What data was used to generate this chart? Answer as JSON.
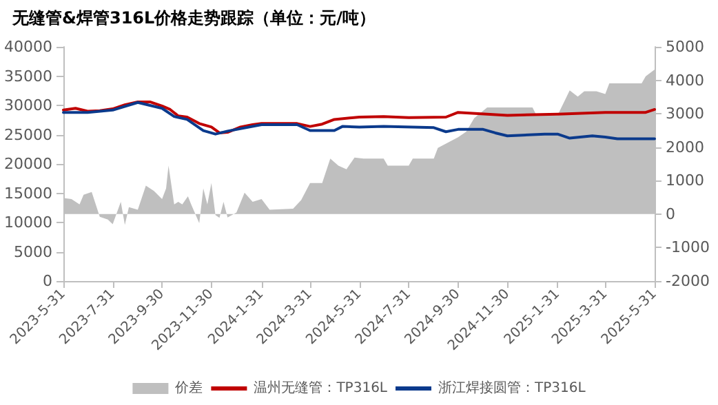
{
  "chart_data": {
    "type": "line",
    "title": "无缝管&焊管316L价格走势跟踪（单位：元/吨）",
    "xlim": [
      "2023-05-31",
      "2025-05-31"
    ],
    "xticks": [
      {
        "value": "2023-05-31",
        "label": "2023-5-31"
      },
      {
        "value": "2023-07-31",
        "label": "2023-7-31"
      },
      {
        "value": "2023-09-30",
        "label": "2023-9-30"
      },
      {
        "value": "2023-11-30",
        "label": "2023-11-30"
      },
      {
        "value": "2024-01-31",
        "label": "2024-1-31"
      },
      {
        "value": "2024-03-31",
        "label": "2024-3-31"
      },
      {
        "value": "2024-05-31",
        "label": "2024-5-31"
      },
      {
        "value": "2024-07-31",
        "label": "2024-7-31"
      },
      {
        "value": "2024-09-30",
        "label": "2024-9-30"
      },
      {
        "value": "2024-11-30",
        "label": "2024-11-30"
      },
      {
        "value": "2025-01-31",
        "label": "2025-1-31"
      },
      {
        "value": "2025-03-31",
        "label": "2025-3-31"
      },
      {
        "value": "2025-05-31",
        "label": "2025-5-31"
      }
    ],
    "ylim": [
      0,
      40000
    ],
    "yticks": [
      0,
      5000,
      10000,
      15000,
      20000,
      25000,
      30000,
      35000,
      40000
    ],
    "y2lim": [
      -2000,
      5000
    ],
    "y2ticks": [
      -2000,
      -1000,
      0,
      1000,
      2000,
      3000,
      4000,
      5000
    ],
    "grid": false,
    "legend": "bottom",
    "marker": "none",
    "line_style": "solid",
    "series": [
      {
        "name": "价差",
        "type": "area",
        "axis": "y2",
        "color": "#bfbfbf",
        "x": [
          "2023-05-31",
          "2023-06-10",
          "2023-06-20",
          "2023-06-25",
          "2023-07-05",
          "2023-07-15",
          "2023-07-25",
          "2023-07-31",
          "2023-08-10",
          "2023-08-15",
          "2023-08-20",
          "2023-08-31",
          "2023-09-10",
          "2023-09-20",
          "2023-09-30",
          "2023-10-05",
          "2023-10-08",
          "2023-10-15",
          "2023-10-20",
          "2023-10-25",
          "2023-11-01",
          "2023-11-05",
          "2023-11-15",
          "2023-11-20",
          "2023-11-25",
          "2023-11-30",
          "2023-12-05",
          "2023-12-10",
          "2023-12-15",
          "2023-12-20",
          "2023-12-31",
          "2024-01-10",
          "2024-01-20",
          "2024-01-31",
          "2024-02-10",
          "2024-03-10",
          "2024-03-20",
          "2024-03-31",
          "2024-04-15",
          "2024-04-25",
          "2024-05-05",
          "2024-05-15",
          "2024-05-25",
          "2024-06-05",
          "2024-06-30",
          "2024-07-05",
          "2024-07-31",
          "2024-08-05",
          "2024-08-31",
          "2024-09-05",
          "2024-09-30",
          "2024-10-10",
          "2024-10-20",
          "2024-11-05",
          "2024-11-30",
          "2024-12-31",
          "2025-01-05",
          "2025-01-31",
          "2025-02-15",
          "2025-02-25",
          "2025-03-05",
          "2025-03-20",
          "2025-03-31",
          "2025-04-05",
          "2025-05-15",
          "2025-05-20",
          "2025-05-31"
        ],
        "values": [
          480,
          450,
          290,
          580,
          660,
          -80,
          -160,
          -300,
          370,
          -320,
          210,
          130,
          850,
          690,
          450,
          770,
          1450,
          290,
          370,
          290,
          530,
          290,
          -270,
          770,
          290,
          930,
          -30,
          -110,
          370,
          -100,
          50,
          640,
          370,
          450,
          130,
          160,
          420,
          930,
          930,
          1660,
          1450,
          1340,
          1690,
          1660,
          1660,
          1450,
          1450,
          1660,
          1660,
          1980,
          2300,
          2460,
          2870,
          3190,
          3190,
          3190,
          2950,
          2950,
          3700,
          3510,
          3670,
          3670,
          3590,
          3910,
          3910,
          4120,
          4320
        ]
      },
      {
        "name": "温州无缝管：TP316L",
        "color": "#c00000",
        "x": [
          "2023-05-31",
          "2023-06-15",
          "2023-06-30",
          "2023-07-15",
          "2023-07-31",
          "2023-08-15",
          "2023-08-31",
          "2023-09-15",
          "2023-09-30",
          "2023-10-10",
          "2023-10-20",
          "2023-10-31",
          "2023-11-15",
          "2023-11-30",
          "2023-12-10",
          "2023-12-20",
          "2024-01-05",
          "2024-01-20",
          "2024-01-31",
          "2024-02-29",
          "2024-03-15",
          "2024-03-31",
          "2024-04-15",
          "2024-04-30",
          "2024-05-31",
          "2024-06-30",
          "2024-07-31",
          "2024-09-15",
          "2024-09-30",
          "2024-11-30",
          "2025-01-31",
          "2025-03-31",
          "2025-05-20",
          "2025-05-31"
        ],
        "values": [
          29200,
          29500,
          29000,
          29100,
          29400,
          30100,
          30600,
          30600,
          29900,
          29300,
          28200,
          28000,
          26900,
          26300,
          25300,
          25400,
          26300,
          26700,
          26900,
          26900,
          26900,
          26400,
          26800,
          27600,
          28000,
          28100,
          27900,
          28000,
          28800,
          28300,
          28500,
          28800,
          28800,
          29300
        ]
      },
      {
        "name": "浙江焊接圆管：TP316L",
        "color": "#0b3a8c",
        "x": [
          "2023-05-31",
          "2023-06-30",
          "2023-07-31",
          "2023-08-31",
          "2023-09-30",
          "2023-10-15",
          "2023-10-31",
          "2023-11-20",
          "2023-12-05",
          "2023-12-20",
          "2024-01-31",
          "2024-03-15",
          "2024-03-31",
          "2024-04-30",
          "2024-05-10",
          "2024-05-31",
          "2024-06-30",
          "2024-08-31",
          "2024-09-15",
          "2024-09-30",
          "2024-10-31",
          "2024-11-15",
          "2024-11-30",
          "2025-01-15",
          "2025-01-31",
          "2025-02-15",
          "2025-03-15",
          "2025-03-31",
          "2025-04-15",
          "2025-05-31"
        ],
        "values": [
          28800,
          28800,
          29200,
          30500,
          29500,
          28100,
          27600,
          25700,
          25100,
          25600,
          26700,
          26700,
          25700,
          25700,
          26400,
          26300,
          26400,
          26200,
          25500,
          25900,
          25900,
          25300,
          24800,
          25100,
          25100,
          24400,
          24800,
          24600,
          24300,
          24300
        ]
      }
    ]
  }
}
